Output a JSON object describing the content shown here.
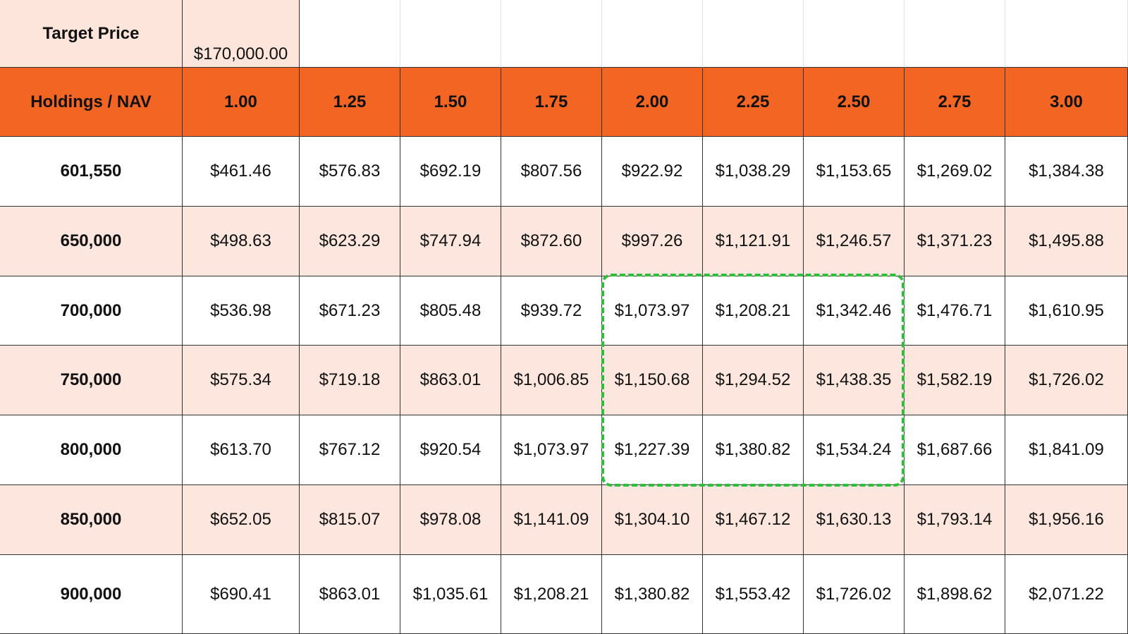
{
  "target": {
    "label": "Target Price",
    "value": "$170,000.00"
  },
  "table": {
    "header": [
      "Holdings / NAV",
      "1.00",
      "1.25",
      "1.50",
      "1.75",
      "2.00",
      "2.25",
      "2.50",
      "2.75",
      "3.00"
    ],
    "rows": [
      [
        "601,550",
        "$461.46",
        "$576.83",
        "$692.19",
        "$807.56",
        "$922.92",
        "$1,038.29",
        "$1,153.65",
        "$1,269.02",
        "$1,384.38"
      ],
      [
        "650,000",
        "$498.63",
        "$623.29",
        "$747.94",
        "$872.60",
        "$997.26",
        "$1,121.91",
        "$1,246.57",
        "$1,371.23",
        "$1,495.88"
      ],
      [
        "700,000",
        "$536.98",
        "$671.23",
        "$805.48",
        "$939.72",
        "$1,073.97",
        "$1,208.21",
        "$1,342.46",
        "$1,476.71",
        "$1,610.95"
      ],
      [
        "750,000",
        "$575.34",
        "$719.18",
        "$863.01",
        "$1,006.85",
        "$1,150.68",
        "$1,294.52",
        "$1,438.35",
        "$1,582.19",
        "$1,726.02"
      ],
      [
        "800,000",
        "$613.70",
        "$767.12",
        "$920.54",
        "$1,073.97",
        "$1,227.39",
        "$1,380.82",
        "$1,534.24",
        "$1,687.66",
        "$1,841.09"
      ],
      [
        "850,000",
        "$652.05",
        "$815.07",
        "$978.08",
        "$1,141.09",
        "$1,304.10",
        "$1,467.12",
        "$1,630.13",
        "$1,793.14",
        "$1,956.16"
      ],
      [
        "900,000",
        "$690.41",
        "$863.01",
        "$1,035.61",
        "$1,208.21",
        "$1,380.82",
        "$1,553.42",
        "$1,726.02",
        "$1,898.62",
        "$2,071.22"
      ]
    ]
  }
}
